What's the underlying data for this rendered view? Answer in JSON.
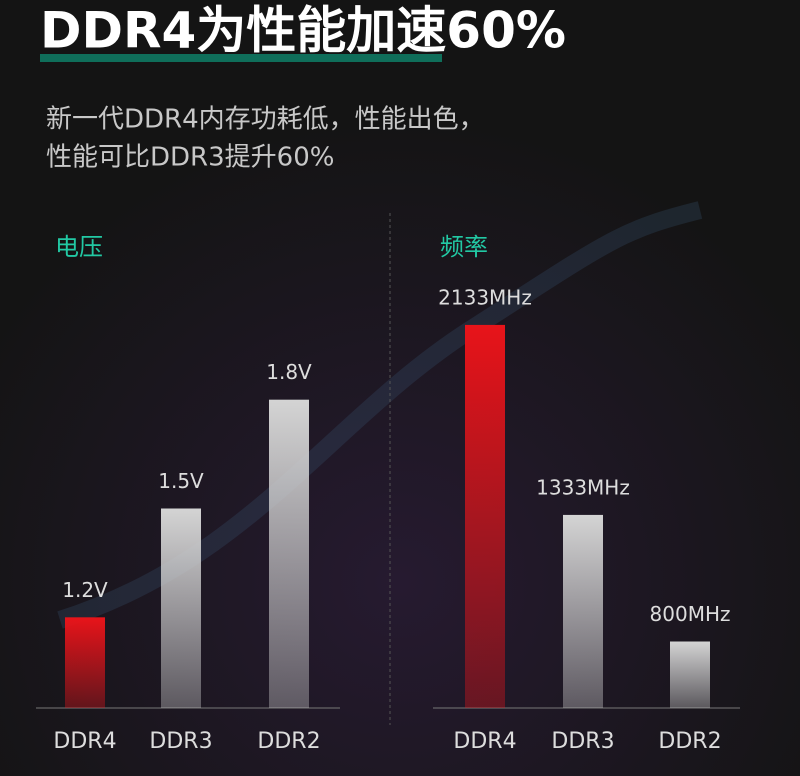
{
  "title": "DDR4为性能加速60%",
  "subtitle": [
    "新一代DDR4内存功耗低，性能出色，",
    "性能可比DDR3提升60%"
  ],
  "chart_data": [
    {
      "type": "bar",
      "title": "电压",
      "categories": [
        "DDR4",
        "DDR3",
        "DDR2"
      ],
      "values": [
        1.2,
        1.5,
        1.8
      ],
      "value_labels": [
        "1.2V",
        "1.5V",
        "1.8V"
      ],
      "colors": [
        "#e8141a",
        "#d4d4d4",
        "#d4d4d4"
      ],
      "ylim": [
        0.95,
        2.05
      ]
    },
    {
      "type": "bar",
      "title": "频率",
      "categories": [
        "DDR4",
        "DDR3",
        "DDR2"
      ],
      "values": [
        2133,
        1333,
        800
      ],
      "value_labels": [
        "2133MHz",
        "1333MHz",
        "800MHz"
      ],
      "colors": [
        "#e8141a",
        "#d4d4d4",
        "#d4d4d4"
      ],
      "ylim": [
        520,
        2200
      ]
    }
  ]
}
